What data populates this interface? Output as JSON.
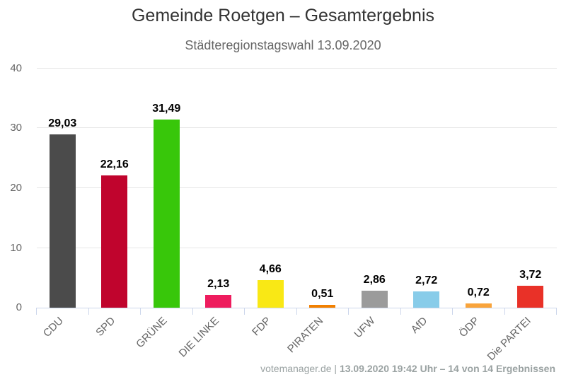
{
  "footer": {
    "source": "votemanager.de",
    "separator": " | ",
    "info": "13.09.2020 19:42 Uhr – 14 von 14 Ergebnissen"
  },
  "chart_data": {
    "type": "bar",
    "title": "Gemeinde Roetgen – Gesamtergebnis",
    "subtitle": "Städteregionstagswahl 13.09.2020",
    "categories": [
      "CDU",
      "SPD",
      "GRÜNE",
      "DIE LINKE",
      "FDP",
      "PIRATEN",
      "UFW",
      "AfD",
      "ÖDP",
      "Die PARTEI"
    ],
    "values": [
      29.03,
      22.16,
      31.49,
      2.13,
      4.66,
      0.51,
      2.86,
      2.72,
      0.72,
      3.72
    ],
    "value_labels": [
      "29,03",
      "22,16",
      "31,49",
      "2,13",
      "4,66",
      "0,51",
      "2,86",
      "2,72",
      "0,72",
      "3,72"
    ],
    "bar_colors": [
      "#4b4b4b",
      "#c0042d",
      "#38c70a",
      "#ee1c5e",
      "#f9e815",
      "#f28000",
      "#9b9b9b",
      "#88cce9",
      "#f9a43b",
      "#e93128"
    ],
    "xlabel": "",
    "ylabel": "",
    "ylim": [
      0,
      40
    ],
    "yticks": [
      0,
      10,
      20,
      30,
      40
    ],
    "ytick_labels": [
      "0",
      "10",
      "20",
      "30",
      "40"
    ],
    "grid": true,
    "legend": false,
    "colors": {
      "grid": "#e6e6e6",
      "axis": "#ccd6eb",
      "axis_label": "#666666",
      "value_label": "#000000",
      "title": "#333333",
      "subtitle": "#666666",
      "footer": "#9aa2a2",
      "background": "#ffffff"
    }
  }
}
